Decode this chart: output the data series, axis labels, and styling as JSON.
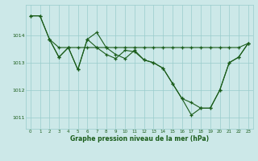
{
  "background_color": "#cce8e8",
  "grid_color": "#99cccc",
  "line_color": "#1a5c1a",
  "title": "Graphe pression niveau de la mer (hPa)",
  "xlim": [
    -0.5,
    23.5
  ],
  "ylim": [
    1010.6,
    1015.1
  ],
  "yticks": [
    1011,
    1012,
    1013,
    1014
  ],
  "xticks": [
    0,
    1,
    2,
    3,
    4,
    5,
    6,
    7,
    8,
    9,
    10,
    11,
    12,
    13,
    14,
    15,
    16,
    17,
    18,
    19,
    20,
    21,
    22,
    23
  ],
  "series": [
    {
      "x": [
        0,
        1,
        2,
        3,
        4,
        5,
        6,
        7,
        8,
        9,
        10,
        11,
        12,
        13,
        14,
        15,
        16,
        17,
        18,
        19,
        20,
        21,
        22,
        23
      ],
      "y": [
        1014.7,
        1014.7,
        1013.85,
        1013.55,
        1013.55,
        1013.55,
        1013.55,
        1013.55,
        1013.55,
        1013.55,
        1013.55,
        1013.55,
        1013.55,
        1013.55,
        1013.55,
        1013.55,
        1013.55,
        1013.55,
        1013.55,
        1013.55,
        1013.55,
        1013.55,
        1013.55,
        1013.7
      ]
    },
    {
      "x": [
        0,
        1,
        2,
        3,
        4,
        5,
        6,
        7,
        8,
        9,
        10,
        11,
        12,
        13,
        14,
        15,
        16,
        17,
        18,
        19,
        20,
        21,
        22,
        23
      ],
      "y": [
        1014.7,
        1014.7,
        1013.85,
        1013.2,
        1013.55,
        1012.75,
        1013.85,
        1013.55,
        1013.3,
        1013.15,
        1013.45,
        1013.4,
        1013.1,
        1013.0,
        1012.8,
        1012.25,
        1011.7,
        1011.55,
        1011.35,
        1011.35,
        1012.0,
        1013.0,
        1013.2,
        1013.7
      ]
    },
    {
      "x": [
        2,
        3,
        4,
        5,
        6,
        7,
        8,
        9,
        10,
        11,
        12,
        13,
        14,
        15,
        16,
        17,
        18,
        19,
        20,
        21,
        22,
        23
      ],
      "y": [
        1013.85,
        1013.2,
        1013.55,
        1012.75,
        1013.85,
        1014.1,
        1013.55,
        1013.3,
        1013.15,
        1013.45,
        1013.1,
        1013.0,
        1012.8,
        1012.25,
        1011.7,
        1011.1,
        1011.35,
        1011.35,
        1012.0,
        1013.0,
        1013.2,
        1013.7
      ]
    }
  ]
}
